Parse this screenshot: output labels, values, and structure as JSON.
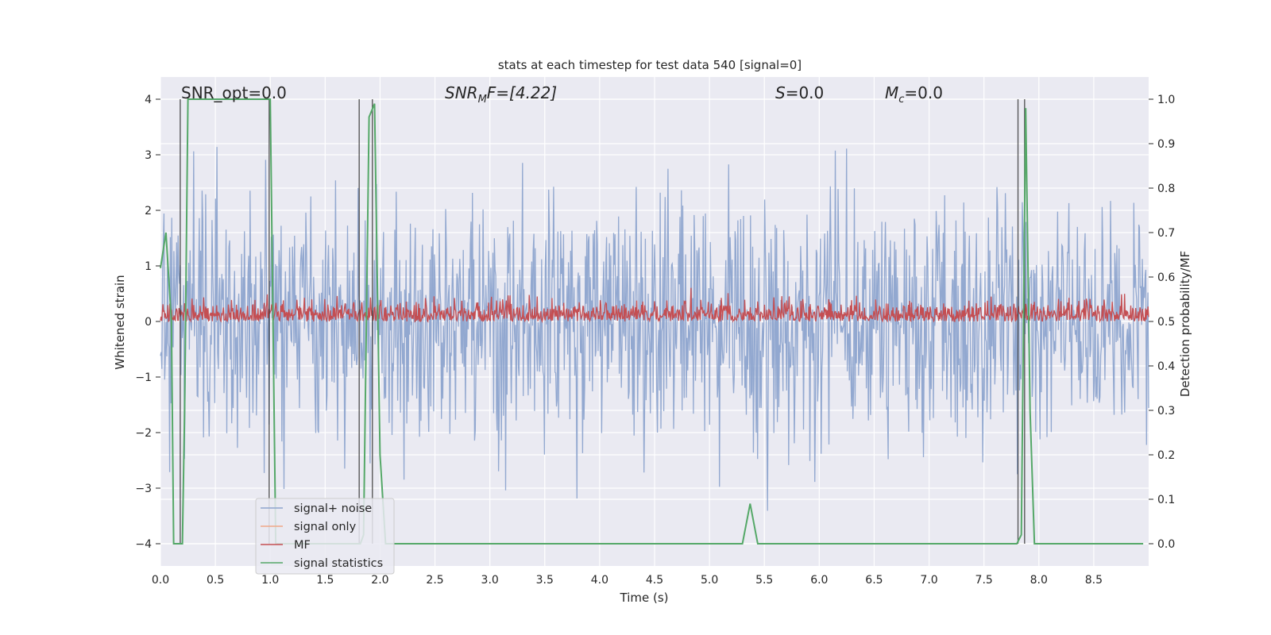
{
  "chart_data": {
    "type": "line",
    "title": "stats at each timestep for test data 540 [signal=0]",
    "xlabel": "Time (s)",
    "ylabel": "Whitened strain",
    "y2label": "Detection probability/MF",
    "xlim": [
      0,
      9
    ],
    "ylim": [
      -4.4,
      4.4
    ],
    "y2lim": [
      -0.05,
      1.05
    ],
    "xticks": [
      "0.0",
      "0.5",
      "1.0",
      "1.5",
      "2.0",
      "2.5",
      "3.0",
      "3.5",
      "4.0",
      "4.5",
      "5.0",
      "5.5",
      "6.0",
      "6.5",
      "7.0",
      "7.5",
      "8.0",
      "8.5"
    ],
    "yticks": [
      "−4",
      "−3",
      "−2",
      "−1",
      "0",
      "1",
      "2",
      "3",
      "4"
    ],
    "y2ticks": [
      "0.0",
      "0.1",
      "0.2",
      "0.3",
      "0.4",
      "0.5",
      "0.6",
      "0.7",
      "0.8",
      "0.9",
      "1.0"
    ],
    "grid": true,
    "legend_position": "lower-left",
    "annotations": {
      "snr_opt": "SNR_opt=0.0",
      "snr_mf_prefix": "SNR",
      "snr_mf_sub": "M",
      "snr_mf_suffix": "F=[4.22]",
      "s_prefix": "S",
      "s_suffix": "=0.0",
      "mc_prefix": "M",
      "mc_sub": "c",
      "mc_suffix": "=0.0"
    },
    "series": [
      {
        "name": "signal+ noise",
        "color": "#8da4cd",
        "description_range": [
          -4.0,
          4.0
        ]
      },
      {
        "name": "signal only",
        "color": "#f0a888"
      },
      {
        "name": "MF",
        "color": "#c44e52",
        "typical_range": [
          0.0,
          0.9
        ]
      },
      {
        "name": "signal statistics",
        "color": "#55a868",
        "axis": "right",
        "x": [
          0.0,
          0.05,
          0.1,
          0.12,
          0.15,
          0.2,
          0.22,
          0.25,
          0.3,
          0.95,
          1.0,
          1.05,
          1.1,
          1.75,
          1.82,
          1.85,
          1.9,
          1.95,
          2.0,
          2.05,
          2.1,
          5.3,
          5.37,
          5.44,
          5.5,
          7.8,
          7.84,
          7.88,
          7.92,
          7.96,
          8.0,
          8.95
        ],
        "y": [
          0.62,
          0.7,
          0.5,
          0.0,
          0.0,
          0.0,
          0.3,
          1.0,
          1.0,
          1.0,
          1.0,
          0.0,
          0.0,
          0.0,
          0.0,
          0.02,
          0.96,
          0.99,
          0.2,
          0.0,
          0.0,
          0.0,
          0.09,
          0.0,
          0.0,
          0.0,
          0.02,
          0.98,
          0.3,
          0.0,
          0.0,
          0.0
        ]
      }
    ],
    "vertical_markers_x": [
      0.18,
      0.99,
      1.81,
      1.93,
      7.81,
      7.87
    ]
  }
}
